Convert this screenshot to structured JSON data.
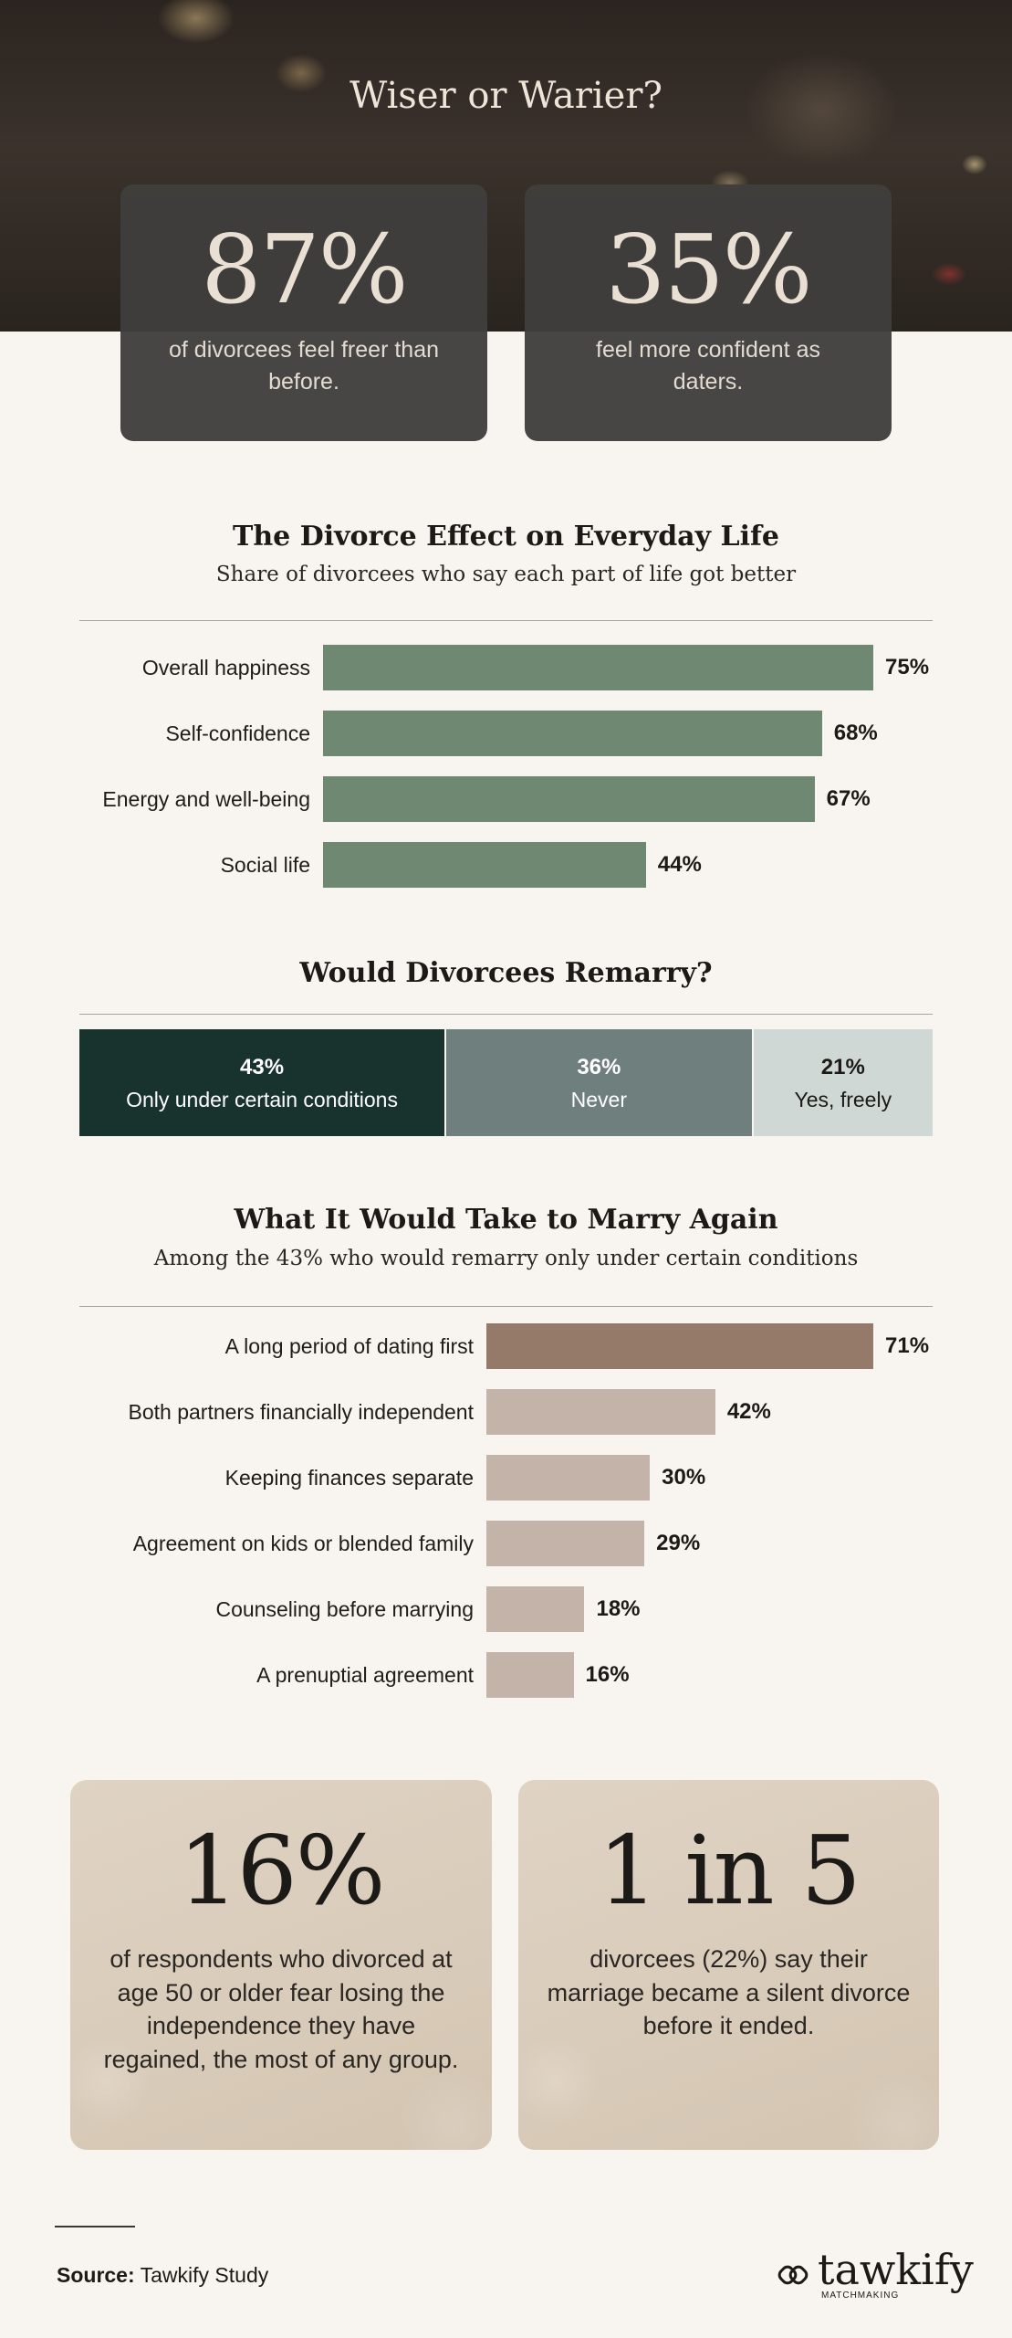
{
  "hero": {
    "title": "Wiser or Warier?",
    "stats": [
      {
        "value": "87%",
        "text": "of divorcees feel freer than before."
      },
      {
        "value": "35%",
        "text": "feel more confident as daters."
      }
    ]
  },
  "everyday": {
    "title": "The Divorce Effect on Everyday Life",
    "subtitle": "Share of divorcees who say each part of life got better"
  },
  "remarry": {
    "title": "Would Divorcees Remarry?"
  },
  "take": {
    "title": "What It Would Take to Marry Again",
    "subtitle": "Among the 43% who would remarry only under certain conditions"
  },
  "cards": [
    {
      "value": "16%",
      "text": "of respondents who divorced at age 50 or older fear losing the independence they have regained, the most of any group."
    },
    {
      "value": "1 in 5",
      "text": "divorcees (22%) say their marriage became a silent divorce before it ended."
    }
  ],
  "source": {
    "label": "Source:",
    "text": "Tawkify Study"
  },
  "logo": {
    "word": "tawkify",
    "sub": "MATCHMAKING"
  },
  "colors": {
    "green_bar": "#6e8872",
    "brown_highlight": "#957a69",
    "taupe_bar": "#c4b3a8",
    "dark_green": "#18332e",
    "slate": "#6f7f7d",
    "light_gray": "#d0d8d6"
  },
  "chart_data": [
    {
      "type": "bar",
      "orientation": "horizontal",
      "title": "The Divorce Effect on Everyday Life",
      "subtitle": "Share of divorcees who say each part of life got better",
      "categories": [
        "Overall happiness",
        "Self-confidence",
        "Energy and well-being",
        "Social life"
      ],
      "values": [
        75,
        68,
        67,
        44
      ],
      "labels": [
        "75%",
        "68%",
        "67%",
        "44%"
      ],
      "unit": "%",
      "xlim": [
        0,
        75
      ]
    },
    {
      "type": "bar",
      "stacked": true,
      "title": "Would Divorcees Remarry?",
      "categories": [
        "Only under certain conditions",
        "Never",
        "Yes, freely"
      ],
      "values": [
        43,
        36,
        21
      ],
      "labels": [
        "43%",
        "36%",
        "21%"
      ],
      "unit": "%"
    },
    {
      "type": "bar",
      "orientation": "horizontal",
      "title": "What It Would Take to Marry Again",
      "subtitle": "Among the 43% who would remarry only under certain conditions",
      "categories": [
        "A long period of dating first",
        "Both partners financially independent",
        "Keeping finances separate",
        "Agreement on kids or blended family",
        "Counseling before marrying",
        "A prenuptial agreement"
      ],
      "values": [
        71,
        42,
        30,
        29,
        18,
        16
      ],
      "labels": [
        "71%",
        "42%",
        "30%",
        "29%",
        "18%",
        "16%"
      ],
      "unit": "%",
      "xlim": [
        0,
        71
      ]
    }
  ]
}
